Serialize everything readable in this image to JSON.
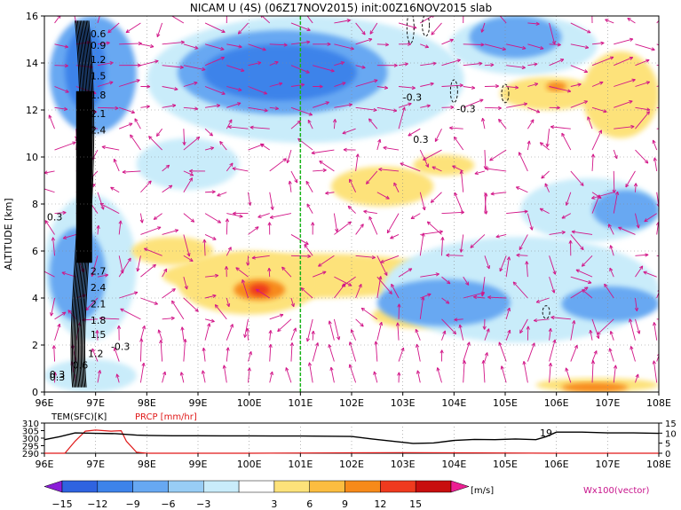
{
  "title": "NICAM U (4S) (06Z17NOV2015) init:00Z16NOV2015 slab",
  "chart_data": [
    {
      "type": "heatmap",
      "title": "NICAM U (4S) (06Z17NOV2015) init:00Z16NOV2015 slab",
      "xlabel": "",
      "ylabel": "ALTITUDE [km]",
      "x_ticks": [
        "96E",
        "97E",
        "98E",
        "99E",
        "100E",
        "101E",
        "102E",
        "103E",
        "104E",
        "105E",
        "106E",
        "107E",
        "108E"
      ],
      "x_range": [
        96,
        108
      ],
      "y_ticks": [
        "0",
        "2",
        "4",
        "6",
        "8",
        "10",
        "12",
        "14",
        "16"
      ],
      "y_range": [
        0,
        16
      ],
      "reference_line_lon": 101,
      "contour_labels": [
        "0.3",
        "0.6",
        "0.9",
        "1.2",
        "1.5",
        "1.8",
        "2.1",
        "2.4",
        "2.7",
        "2.4",
        "2.1",
        "1.8",
        "1.5",
        "1.2",
        "0.6",
        "0.3",
        "-0.3",
        "-0.3",
        "-0.3",
        "0.3",
        "0.3"
      ],
      "colorbar": {
        "levels": [
          "−15",
          "−12",
          "−9",
          "−6",
          "−3",
          "3",
          "6",
          "9",
          "12",
          "15"
        ],
        "colors": [
          "#8b1ed8",
          "#2f63e0",
          "#3d83ea",
          "#67a8f2",
          "#98cdf5",
          "#c9ecfa",
          "#ffffff",
          "#fde27a",
          "#fcbd40",
          "#f78a1a",
          "#ef3a1e",
          "#c80e0e",
          "#ec1f93"
        ],
        "unit": "[m/s]"
      },
      "vector_label": "Wx100(vector)",
      "blobs": [
        {
          "v": -6,
          "x": [
            96.1,
            97.8
          ],
          "y": [
            11.0,
            16.0
          ]
        },
        {
          "v": -9,
          "x": [
            96.4,
            97.2
          ],
          "y": [
            12.0,
            15.5
          ]
        },
        {
          "v": -6,
          "x": [
            98.6,
            102.7
          ],
          "y": [
            11.8,
            15.4
          ]
        },
        {
          "v": -9,
          "x": [
            99.1,
            102.1
          ],
          "y": [
            12.4,
            14.8
          ]
        },
        {
          "v": -3,
          "x": [
            98.0,
            104.2
          ],
          "y": [
            10.6,
            16.0
          ]
        },
        {
          "v": -3,
          "x": [
            103.9,
            106.8
          ],
          "y": [
            13.5,
            16.0
          ]
        },
        {
          "v": -6,
          "x": [
            104.3,
            106.1
          ],
          "y": [
            14.2,
            16.0
          ]
        },
        {
          "v": -3,
          "x": [
            96.0,
            97.8
          ],
          "y": [
            2.2,
            8.4
          ]
        },
        {
          "v": -6,
          "x": [
            96.1,
            97.2
          ],
          "y": [
            3.0,
            7.0
          ]
        },
        {
          "v": -3,
          "x": [
            96.0,
            97.8
          ],
          "y": [
            0.0,
            1.4
          ]
        },
        {
          "v": -3,
          "x": [
            97.8,
            99.8
          ],
          "y": [
            8.6,
            10.8
          ]
        },
        {
          "v": 3,
          "x": [
            101.6,
            103.6
          ],
          "y": [
            7.9,
            9.6
          ]
        },
        {
          "v": 3,
          "x": [
            98.3,
            104.0
          ],
          "y": [
            4.0,
            5.9
          ]
        },
        {
          "v": 3,
          "x": [
            98.6,
            101.4
          ],
          "y": [
            3.3,
            6.0
          ]
        },
        {
          "v": 6,
          "x": [
            99.7,
            100.7
          ],
          "y": [
            3.9,
            4.8
          ]
        },
        {
          "v": 9,
          "x": [
            100.0,
            100.4
          ],
          "y": [
            4.1,
            4.6
          ]
        },
        {
          "v": 3,
          "x": [
            97.7,
            99.3
          ],
          "y": [
            5.4,
            6.6
          ]
        },
        {
          "v": 3,
          "x": [
            103.2,
            104.4
          ],
          "y": [
            9.2,
            10.1
          ]
        },
        {
          "v": 3,
          "x": [
            102.4,
            104.3
          ],
          "y": [
            2.7,
            3.8
          ]
        },
        {
          "v": 3,
          "x": [
            104.9,
            106.8
          ],
          "y": [
            12.0,
            13.4
          ]
        },
        {
          "v": 6,
          "x": [
            105.8,
            106.2
          ],
          "y": [
            12.8,
            13.2
          ]
        },
        {
          "v": 3,
          "x": [
            106.5,
            108.0
          ],
          "y": [
            10.8,
            14.5
          ]
        },
        {
          "v": -3,
          "x": [
            102.6,
            108.0
          ],
          "y": [
            2.1,
            6.6
          ]
        },
        {
          "v": -6,
          "x": [
            102.5,
            105.1
          ],
          "y": [
            2.8,
            4.8
          ]
        },
        {
          "v": -6,
          "x": [
            106.1,
            108.0
          ],
          "y": [
            3.0,
            4.5
          ]
        },
        {
          "v": -3,
          "x": [
            105.3,
            108.0
          ],
          "y": [
            6.4,
            9.1
          ]
        },
        {
          "v": -6,
          "x": [
            106.7,
            108.0
          ],
          "y": [
            6.9,
            8.6
          ]
        },
        {
          "v": 3,
          "x": [
            105.6,
            108.0
          ],
          "y": [
            0.0,
            0.6
          ]
        },
        {
          "v": 6,
          "x": [
            106.1,
            107.4
          ],
          "y": [
            0.0,
            0.4
          ]
        }
      ]
    },
    {
      "type": "line",
      "title": "",
      "xlabel": "",
      "x_ticks": [
        "96E",
        "97E",
        "98E",
        "99E",
        "100E",
        "101E",
        "102E",
        "103E",
        "104E",
        "105E",
        "106E",
        "107E",
        "108E"
      ],
      "x_range": [
        96,
        108
      ],
      "left_axis": {
        "label": "TEM(SFC)[K]",
        "ticks": [
          "310",
          "305",
          "300",
          "295",
          "290"
        ],
        "range": [
          290,
          310
        ]
      },
      "right_axis": {
        "label": "PRCP [mm/hr]",
        "ticks": [
          "15",
          "10",
          "5",
          "0"
        ],
        "range": [
          0,
          15
        ]
      },
      "series": [
        {
          "name": "TEM(SFC)[K]",
          "color": "#000000",
          "axis": "left",
          "x": [
            96.0,
            96.3,
            96.6,
            97.0,
            97.4,
            97.8,
            98.0,
            98.5,
            99.0,
            99.5,
            100.0,
            100.5,
            101.0,
            101.5,
            102.0,
            102.4,
            102.8,
            103.2,
            103.6,
            104.0,
            104.4,
            104.8,
            105.2,
            105.6,
            105.8,
            106.0,
            106.5,
            107.0,
            107.5,
            108.0
          ],
          "y": [
            299.0,
            301.0,
            303.5,
            303.2,
            303.0,
            302.0,
            301.8,
            301.6,
            301.6,
            301.5,
            301.5,
            301.4,
            301.4,
            301.3,
            301.1,
            299.5,
            298.0,
            296.5,
            296.8,
            298.5,
            299.2,
            299.0,
            299.5,
            299.0,
            301.0,
            304.0,
            304.0,
            303.5,
            303.5,
            303.2
          ]
        },
        {
          "name": "PRCP [mm/hr]",
          "color": "#e01818",
          "axis": "right",
          "x": [
            96.0,
            96.4,
            96.6,
            96.8,
            97.0,
            97.3,
            97.5,
            97.6,
            97.8,
            98.0,
            100.0,
            102.0,
            103.0,
            104.0,
            106.0,
            108.0
          ],
          "y": [
            0.0,
            0.0,
            6.0,
            11.0,
            11.5,
            11.0,
            11.2,
            6.0,
            0.5,
            0.0,
            0.0,
            0.2,
            0.3,
            0.2,
            0.0,
            0.0
          ]
        }
      ],
      "annotation": "19"
    }
  ]
}
